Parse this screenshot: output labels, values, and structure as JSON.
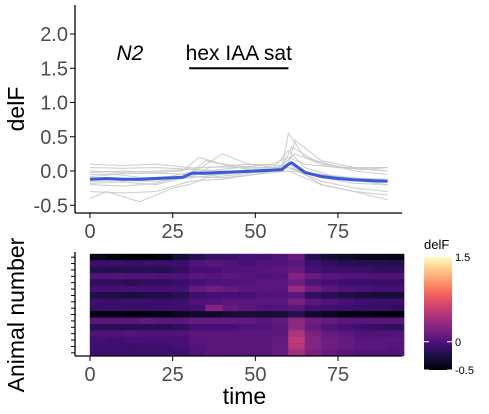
{
  "chart_data": [
    {
      "type": "line",
      "ylabel": "delF",
      "xlabel": "",
      "xlim": [
        -2,
        92
      ],
      "ylim": [
        -0.6,
        2.4
      ],
      "x_ticks": [
        0,
        25,
        50,
        75
      ],
      "y_ticks": [
        -0.5,
        0.0,
        0.5,
        1.0,
        1.5,
        2.0
      ],
      "y_tick_labels": [
        "-0.5",
        "0.0",
        "0.5",
        "1.0",
        "1.5",
        "2.0"
      ],
      "x_tick_labels": [
        "0",
        "25",
        "50",
        "75"
      ],
      "annotations": {
        "strain": "N2",
        "stimulus": "hex IAA sat",
        "stimulus_start": 30,
        "stimulus_end": 60,
        "stimulus_bar_y": 1.5
      },
      "mean_color": "#3a5bd9",
      "trace_color": "#c8c8c8",
      "mean": {
        "x": [
          0,
          5,
          10,
          15,
          20,
          25,
          28,
          30,
          31,
          35,
          40,
          45,
          50,
          55,
          58,
          60,
          61,
          63,
          65,
          70,
          75,
          80,
          85,
          90
        ],
        "y": [
          -0.12,
          -0.11,
          -0.12,
          -0.12,
          -0.11,
          -0.1,
          -0.09,
          -0.05,
          -0.03,
          -0.03,
          -0.02,
          -0.01,
          0.0,
          0.01,
          0.02,
          0.1,
          0.12,
          0.05,
          -0.02,
          -0.08,
          -0.11,
          -0.13,
          -0.14,
          -0.15
        ]
      },
      "traces": [
        {
          "x": [
            0,
            10,
            20,
            28,
            32,
            40,
            50,
            58,
            60,
            65,
            75,
            90
          ],
          "y": [
            0.05,
            0.04,
            0.05,
            0.03,
            0.05,
            0.06,
            0.04,
            0.06,
            0.55,
            0.2,
            0.05,
            0.0
          ]
        },
        {
          "x": [
            0,
            10,
            20,
            30,
            35,
            40,
            50,
            58,
            61,
            68,
            80,
            90
          ],
          "y": [
            -0.05,
            -0.04,
            -0.03,
            -0.05,
            0.15,
            0.1,
            0.05,
            0.05,
            0.35,
            0.15,
            0.0,
            -0.05
          ]
        },
        {
          "x": [
            0,
            10,
            20,
            30,
            40,
            50,
            55,
            60,
            65,
            75,
            90
          ],
          "y": [
            -0.15,
            -0.14,
            -0.15,
            -0.1,
            -0.05,
            0.0,
            0.02,
            0.3,
            0.05,
            -0.1,
            -0.2
          ]
        },
        {
          "x": [
            0,
            5,
            15,
            25,
            30,
            35,
            45,
            55,
            60,
            70,
            80,
            90
          ],
          "y": [
            -0.4,
            -0.3,
            -0.45,
            -0.25,
            -0.2,
            -0.1,
            -0.05,
            0.0,
            0.1,
            -0.2,
            -0.3,
            -0.35
          ]
        },
        {
          "x": [
            0,
            10,
            20,
            30,
            40,
            50,
            60,
            70,
            80,
            90
          ],
          "y": [
            -0.2,
            -0.22,
            -0.18,
            -0.05,
            -0.05,
            0.02,
            0.05,
            -0.15,
            -0.25,
            -0.3
          ]
        },
        {
          "x": [
            0,
            10,
            20,
            30,
            40,
            50,
            60,
            62,
            70,
            80,
            90
          ],
          "y": [
            0.0,
            -0.02,
            0.0,
            0.02,
            0.0,
            -0.02,
            0.1,
            0.45,
            0.15,
            0.05,
            0.0
          ]
        },
        {
          "x": [
            0,
            8,
            16,
            24,
            32,
            40,
            48,
            56,
            60,
            68,
            78,
            90
          ],
          "y": [
            -0.08,
            -0.05,
            -0.1,
            -0.08,
            0.0,
            0.25,
            0.1,
            0.05,
            0.05,
            -0.05,
            -0.1,
            -0.12
          ]
        },
        {
          "x": [
            0,
            10,
            20,
            30,
            40,
            50,
            60,
            70,
            80,
            90
          ],
          "y": [
            -0.3,
            -0.32,
            -0.3,
            -0.15,
            -0.12,
            -0.05,
            0.0,
            -0.2,
            -0.3,
            -0.42
          ]
        },
        {
          "x": [
            0,
            10,
            20,
            30,
            35,
            45,
            55,
            60,
            65,
            75,
            90
          ],
          "y": [
            0.1,
            0.08,
            0.1,
            0.05,
            0.0,
            0.05,
            0.1,
            0.2,
            0.1,
            0.05,
            0.05
          ]
        },
        {
          "x": [
            0,
            10,
            20,
            30,
            40,
            50,
            60,
            70,
            80,
            90
          ],
          "y": [
            -0.18,
            -0.16,
            -0.2,
            -0.08,
            -0.1,
            -0.05,
            0.05,
            -0.1,
            -0.18,
            -0.2
          ]
        },
        {
          "x": [
            0,
            12,
            24,
            30,
            36,
            48,
            58,
            62,
            70,
            82,
            90
          ],
          "y": [
            -0.1,
            -0.12,
            -0.1,
            -0.1,
            0.05,
            0.1,
            0.08,
            0.25,
            0.1,
            0.02,
            0.05
          ]
        },
        {
          "x": [
            0,
            10,
            20,
            28,
            33,
            40,
            50,
            60,
            70,
            80,
            90
          ],
          "y": [
            -0.02,
            0.0,
            -0.02,
            0.0,
            0.2,
            0.1,
            0.0,
            0.0,
            -0.05,
            -0.1,
            -0.15
          ]
        }
      ]
    },
    {
      "type": "heatmap",
      "xlabel": "time",
      "ylabel": "Animal number",
      "xlim": [
        -2,
        92
      ],
      "x_ticks": [
        0,
        25,
        50,
        75
      ],
      "x_tick_labels": [
        "0",
        "25",
        "50",
        "75"
      ],
      "n_rows": 16,
      "time_bins": [
        0,
        5,
        10,
        15,
        20,
        25,
        30,
        35,
        40,
        45,
        50,
        55,
        60,
        65,
        70,
        75,
        80,
        85,
        90
      ],
      "legend": {
        "title": "delF",
        "range": [
          -0.5,
          1.5
        ],
        "tick_values": [
          1.5,
          0,
          -0.5
        ],
        "tick_labels": [
          "1.5",
          "0",
          "-0.5"
        ],
        "colors": [
          "#000004",
          "#180f3d",
          "#440f76",
          "#721f81",
          "#9e2f7f",
          "#cd4071",
          "#f1605d",
          "#fd9668",
          "#feca8d",
          "#fcfdbf"
        ]
      },
      "rows": [
        [
          -0.4,
          -0.45,
          -0.5,
          -0.5,
          -0.45,
          -0.3,
          -0.2,
          -0.1,
          -0.1,
          -0.05,
          -0.05,
          0.0,
          0.1,
          -0.2,
          -0.3,
          -0.35,
          -0.4,
          -0.4,
          -0.42
        ],
        [
          -0.1,
          -0.1,
          -0.12,
          -0.1,
          -0.1,
          -0.1,
          0.0,
          0.05,
          0.0,
          -0.05,
          0.0,
          0.0,
          0.05,
          -0.1,
          -0.15,
          -0.2,
          -0.2,
          -0.2,
          -0.22
        ],
        [
          -0.2,
          -0.22,
          -0.2,
          -0.18,
          -0.2,
          -0.15,
          -0.05,
          -0.05,
          0.0,
          0.0,
          0.02,
          0.05,
          0.1,
          -0.05,
          -0.1,
          -0.1,
          -0.12,
          -0.15,
          -0.15
        ],
        [
          0.0,
          0.02,
          0.0,
          0.0,
          -0.02,
          0.0,
          0.05,
          0.02,
          0.05,
          0.02,
          0.0,
          0.02,
          0.25,
          0.1,
          0.05,
          0.02,
          0.0,
          0.0,
          0.0
        ],
        [
          -0.15,
          -0.15,
          -0.18,
          -0.15,
          -0.15,
          -0.12,
          -0.05,
          -0.02,
          0.0,
          0.02,
          0.05,
          0.05,
          0.15,
          0.0,
          -0.05,
          -0.1,
          -0.1,
          -0.12,
          -0.12
        ],
        [
          -0.05,
          -0.05,
          -0.05,
          -0.05,
          -0.05,
          -0.05,
          0.1,
          0.15,
          0.1,
          0.05,
          0.05,
          0.05,
          0.35,
          0.15,
          0.05,
          0.0,
          -0.02,
          -0.05,
          -0.05
        ],
        [
          -0.25,
          -0.25,
          -0.28,
          -0.25,
          -0.25,
          -0.2,
          -0.1,
          -0.05,
          -0.05,
          -0.05,
          0.0,
          0.0,
          0.05,
          -0.15,
          -0.2,
          -0.25,
          -0.28,
          -0.3,
          -0.3
        ],
        [
          -0.1,
          -0.12,
          -0.1,
          -0.1,
          -0.12,
          -0.1,
          0.0,
          0.0,
          0.05,
          0.05,
          0.05,
          0.05,
          0.2,
          0.05,
          0.0,
          -0.05,
          -0.08,
          -0.1,
          -0.1
        ],
        [
          -0.12,
          -0.1,
          -0.12,
          -0.12,
          -0.1,
          -0.1,
          -0.05,
          0.25,
          0.1,
          0.05,
          0.0,
          0.0,
          0.05,
          -0.05,
          -0.08,
          -0.1,
          -0.12,
          -0.12,
          -0.15
        ],
        [
          -0.45,
          -0.45,
          -0.48,
          -0.45,
          -0.45,
          -0.4,
          -0.35,
          -0.35,
          -0.3,
          -0.3,
          -0.3,
          -0.3,
          -0.2,
          -0.35,
          -0.4,
          -0.45,
          -0.45,
          -0.48,
          -0.48
        ],
        [
          0.05,
          0.05,
          0.05,
          0.08,
          0.05,
          0.05,
          0.1,
          0.1,
          0.1,
          0.08,
          0.05,
          0.08,
          0.3,
          0.15,
          0.1,
          0.05,
          0.05,
          0.05,
          0.05
        ],
        [
          -0.18,
          -0.2,
          -0.18,
          -0.18,
          -0.2,
          -0.15,
          -0.05,
          -0.05,
          -0.05,
          0.0,
          0.0,
          0.05,
          0.3,
          0.1,
          0.0,
          -0.05,
          -0.1,
          -0.12,
          -0.15
        ],
        [
          0.0,
          0.0,
          0.02,
          0.0,
          0.0,
          0.0,
          0.05,
          0.05,
          0.05,
          0.05,
          0.05,
          0.05,
          0.45,
          0.2,
          0.1,
          0.05,
          0.0,
          0.0,
          0.0
        ],
        [
          -0.05,
          -0.08,
          -0.05,
          -0.05,
          -0.05,
          -0.05,
          0.05,
          0.05,
          0.05,
          0.05,
          0.05,
          0.1,
          0.55,
          0.25,
          0.15,
          0.1,
          0.05,
          0.05,
          0.05
        ],
        [
          -0.08,
          -0.08,
          -0.1,
          -0.08,
          -0.08,
          -0.05,
          0.0,
          0.05,
          0.05,
          0.05,
          0.05,
          0.1,
          0.5,
          0.25,
          0.15,
          0.1,
          0.05,
          0.05,
          0.02
        ],
        [
          -0.1,
          -0.1,
          -0.1,
          -0.1,
          -0.1,
          -0.1,
          0.0,
          0.05,
          0.05,
          0.05,
          0.05,
          0.1,
          0.4,
          0.2,
          0.1,
          0.05,
          0.0,
          0.0,
          0.0
        ]
      ]
    }
  ]
}
